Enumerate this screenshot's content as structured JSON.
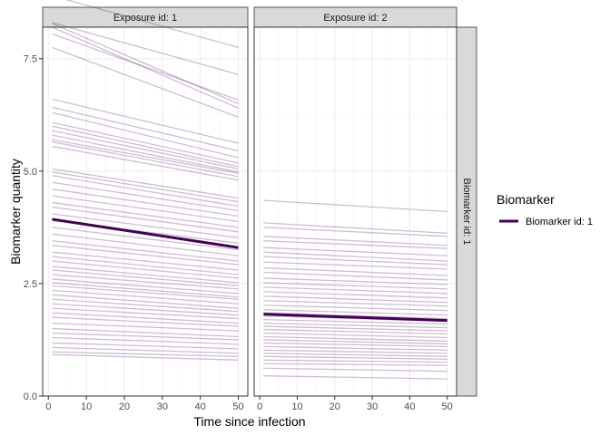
{
  "chart_data": {
    "type": "line",
    "title": "",
    "xlabel": "Time since infection",
    "ylabel": "Biomarker quantity",
    "xlim": [
      -1.5,
      52.5
    ],
    "ylim": [
      0,
      8.2
    ],
    "x_ticks": [
      0,
      10,
      20,
      30,
      40,
      50
    ],
    "y_ticks": [
      0.0,
      2.5,
      5.0,
      7.5
    ],
    "y_tick_labels": [
      "0.0",
      "2.5",
      "5.0",
      "7.5"
    ],
    "grid": true,
    "legend_position": "right",
    "legend": {
      "title": "Biomarker",
      "entries": [
        {
          "label": "Biomarker id: 1",
          "color": "#440154"
        }
      ]
    },
    "row_strip": "Biomarker id: 1",
    "panels": [
      {
        "strip": "Exposure id: 1",
        "highlight": {
          "x": [
            1,
            50
          ],
          "y": [
            3.93,
            3.3
          ]
        },
        "background_lines": [
          [
            8.9,
            7.75
          ],
          [
            8.3,
            7.15
          ],
          [
            8.28,
            6.5
          ],
          [
            8.2,
            6.4
          ],
          [
            8.05,
            6.58
          ],
          [
            7.75,
            6.2
          ],
          [
            6.6,
            5.62
          ],
          [
            6.42,
            5.45
          ],
          [
            6.3,
            5.3
          ],
          [
            6.08,
            5.18
          ],
          [
            6.0,
            5.1
          ],
          [
            5.9,
            5.05
          ],
          [
            5.8,
            4.98
          ],
          [
            5.7,
            4.95
          ],
          [
            5.65,
            4.88
          ],
          [
            5.55,
            4.8
          ],
          [
            5.05,
            4.4
          ],
          [
            4.98,
            4.32
          ],
          [
            4.9,
            4.22
          ],
          [
            4.75,
            4.12
          ],
          [
            4.6,
            4.0
          ],
          [
            4.45,
            3.88
          ],
          [
            4.3,
            3.75
          ],
          [
            4.2,
            3.65
          ],
          [
            4.05,
            3.52
          ],
          [
            3.9,
            3.4
          ],
          [
            3.75,
            3.25
          ],
          [
            3.6,
            3.12
          ],
          [
            3.45,
            3.0
          ],
          [
            3.35,
            2.92
          ],
          [
            3.2,
            2.8
          ],
          [
            3.1,
            2.7
          ],
          [
            3.0,
            2.62
          ],
          [
            2.88,
            2.52
          ],
          [
            2.8,
            2.45
          ],
          [
            2.7,
            2.38
          ],
          [
            2.6,
            2.28
          ],
          [
            2.52,
            2.2
          ],
          [
            2.45,
            2.15
          ],
          [
            2.35,
            2.05
          ],
          [
            2.25,
            1.95
          ],
          [
            2.15,
            1.88
          ],
          [
            2.05,
            1.8
          ],
          [
            1.95,
            1.72
          ],
          [
            1.85,
            1.62
          ],
          [
            1.75,
            1.55
          ],
          [
            1.62,
            1.45
          ],
          [
            1.5,
            1.32
          ],
          [
            1.4,
            1.25
          ],
          [
            1.3,
            1.15
          ],
          [
            1.18,
            1.05
          ],
          [
            1.08,
            0.95
          ],
          [
            0.98,
            0.88
          ],
          [
            0.92,
            0.8
          ]
        ]
      },
      {
        "strip": "Exposure id: 2",
        "highlight": {
          "x": [
            1,
            50
          ],
          "y": [
            1.82,
            1.68
          ]
        },
        "background_lines": [
          [
            4.35,
            4.1
          ],
          [
            3.85,
            3.62
          ],
          [
            3.75,
            3.55
          ],
          [
            3.55,
            3.35
          ],
          [
            3.45,
            3.28
          ],
          [
            3.3,
            3.12
          ],
          [
            3.2,
            3.0
          ],
          [
            3.1,
            2.92
          ],
          [
            2.98,
            2.82
          ],
          [
            2.85,
            2.68
          ],
          [
            2.75,
            2.58
          ],
          [
            2.62,
            2.48
          ],
          [
            2.52,
            2.38
          ],
          [
            2.42,
            2.28
          ],
          [
            2.32,
            2.18
          ],
          [
            2.22,
            2.08
          ],
          [
            2.12,
            2.0
          ],
          [
            2.02,
            1.9
          ],
          [
            1.92,
            1.8
          ],
          [
            1.85,
            1.72
          ],
          [
            1.78,
            1.66
          ],
          [
            1.7,
            1.6
          ],
          [
            1.62,
            1.52
          ],
          [
            1.55,
            1.45
          ],
          [
            1.48,
            1.38
          ],
          [
            1.4,
            1.3
          ],
          [
            1.32,
            1.22
          ],
          [
            1.25,
            1.16
          ],
          [
            1.18,
            1.1
          ],
          [
            1.1,
            1.02
          ],
          [
            1.02,
            0.95
          ],
          [
            0.95,
            0.88
          ],
          [
            0.88,
            0.82
          ],
          [
            0.8,
            0.75
          ],
          [
            0.72,
            0.68
          ],
          [
            0.62,
            0.55
          ],
          [
            0.45,
            0.38
          ]
        ]
      }
    ]
  },
  "colors": {
    "highlight_line": "#440154",
    "background_line": "#440154",
    "strip_fill": "#d9d9d9",
    "grid_major": "#ebebeb",
    "grid_minor": "#f5f5f5"
  }
}
